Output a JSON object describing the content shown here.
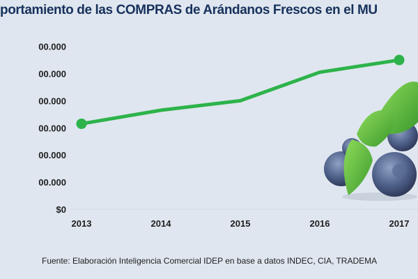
{
  "title": "portamiento de las COMPRAS  de Arándanos Frescos en el MU",
  "source": "Fuente:  Elaboración Inteligencia Comercial IDEP en base a datos INDEC, CIA,  TRADEMA",
  "colors": {
    "line": "#2db34a",
    "title": "#17315c",
    "background": "#dfe6ef"
  },
  "decoration": "blueberries-with-mint-image",
  "chart_data": {
    "type": "line",
    "title": "",
    "xlabel": "",
    "ylabel": "",
    "categories": [
      "2013",
      "2014",
      "2015",
      "2016",
      "2017"
    ],
    "y_tick_labels": [
      "$0",
      "00.000",
      "00.000",
      "00.000",
      "00.000",
      "00.000",
      "00.000"
    ],
    "ylim": [
      0,
      6
    ],
    "grid": false,
    "legend": "none",
    "series": [
      {
        "values": [
          3.15,
          3.65,
          4.0,
          5.05,
          5.5
        ]
      }
    ]
  }
}
